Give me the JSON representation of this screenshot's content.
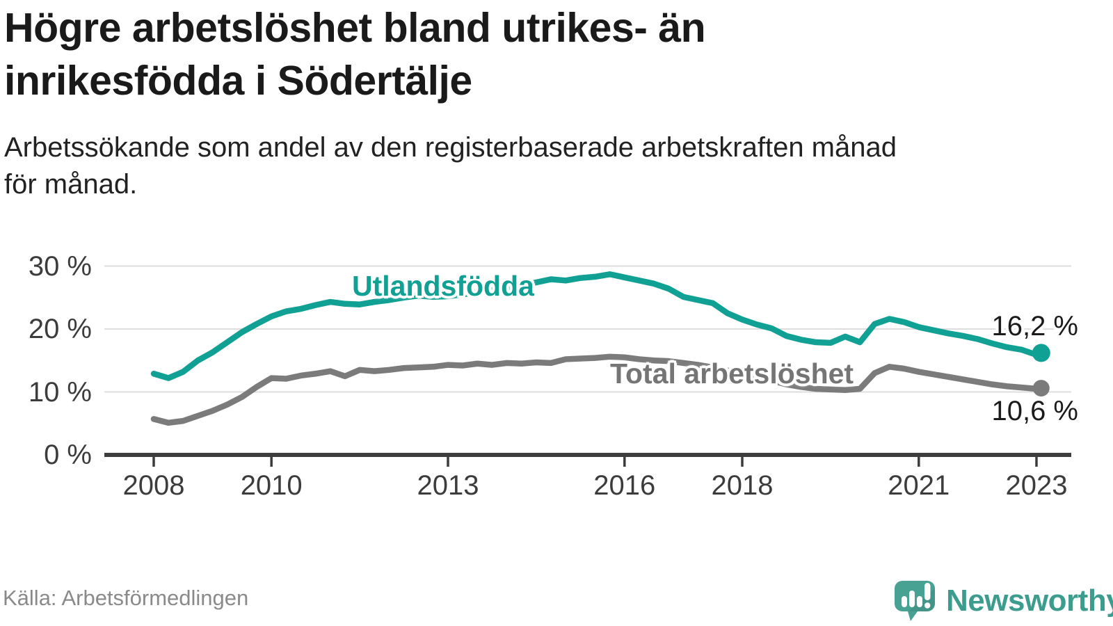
{
  "title_lines": [
    "Högre arbetslöshet bland utrikes- än",
    "inrikesfödda i Södertälje"
  ],
  "subtitle_lines": [
    "Arbetssökande som andel av den registerbaserade arbetskraften månad",
    "för månad."
  ],
  "source": "Källa: Arbetsförmedlingen",
  "branding": {
    "name": "Newsworthy"
  },
  "colors": {
    "background": "#FFFFFF",
    "title": "#1A1A1A",
    "subtitle": "#222222",
    "axis": "#3D3D3D",
    "axis_labels": "#3C3C3C",
    "grid": "#DEDEDE",
    "value_labels": "#1B1B1B",
    "source_text": "#8A8A8A",
    "brand_teal": "#3C9D8E",
    "series_foreign_born": "#10A094",
    "series_total": "#7B7B7B"
  },
  "chart_data": {
    "type": "line",
    "x_unit": "year (monthly register data, share of registered labour force in %)",
    "grid": "horizontal-only",
    "legend": "inline-labels",
    "xlim": [
      2007.2,
      2023.6
    ],
    "ylim": [
      0,
      31
    ],
    "x_ticks": [
      {
        "value": 2008,
        "label": "2008"
      },
      {
        "value": 2010,
        "label": "2010"
      },
      {
        "value": 2013,
        "label": "2013"
      },
      {
        "value": 2016,
        "label": "2016"
      },
      {
        "value": 2018,
        "label": "2018"
      },
      {
        "value": 2021,
        "label": "2021"
      },
      {
        "value": 2023,
        "label": "2023"
      }
    ],
    "y_ticks": [
      {
        "value": 0,
        "label": "0 %"
      },
      {
        "value": 10,
        "label": "10 %"
      },
      {
        "value": 20,
        "label": "20 %"
      },
      {
        "value": 30,
        "label": "30 %"
      }
    ],
    "x": [
      2008,
      2008.25,
      2008.5,
      2008.75,
      2009,
      2009.25,
      2009.5,
      2009.75,
      2010,
      2010.25,
      2010.5,
      2010.75,
      2011,
      2011.25,
      2011.5,
      2011.75,
      2012,
      2012.25,
      2012.5,
      2012.75,
      2013,
      2013.25,
      2013.5,
      2013.75,
      2014,
      2014.25,
      2014.5,
      2014.75,
      2015,
      2015.25,
      2015.5,
      2015.75,
      2016,
      2016.25,
      2016.5,
      2016.75,
      2017,
      2017.25,
      2017.5,
      2017.75,
      2018,
      2018.25,
      2018.5,
      2018.75,
      2019,
      2019.25,
      2019.5,
      2019.75,
      2020,
      2020.25,
      2020.5,
      2020.75,
      2021,
      2021.25,
      2021.5,
      2021.75,
      2022,
      2022.25,
      2022.5,
      2022.75,
      2023,
      2023.08
    ],
    "series": [
      {
        "name": "Utlandsfödda",
        "color": "#10A094",
        "end_label": "16,2 %",
        "end_value": 16.2,
        "end_dot_radius": 13,
        "values": [
          12.9,
          12.2,
          13.2,
          15.0,
          16.3,
          17.9,
          19.5,
          20.8,
          22.0,
          22.8,
          23.2,
          23.8,
          24.3,
          24.0,
          23.9,
          24.3,
          24.6,
          25.0,
          25.3,
          25.1,
          25.2,
          25.5,
          25.8,
          26.2,
          26.6,
          27.0,
          27.4,
          27.9,
          27.7,
          28.1,
          28.3,
          28.7,
          28.2,
          27.7,
          27.2,
          26.4,
          25.1,
          24.6,
          24.1,
          22.5,
          21.5,
          20.7,
          20.1,
          18.9,
          18.3,
          17.9,
          17.8,
          18.8,
          17.9,
          20.8,
          21.6,
          21.1,
          20.3,
          19.8,
          19.3,
          18.9,
          18.4,
          17.7,
          17.1,
          16.7,
          15.9,
          16.2
        ]
      },
      {
        "name": "Total arbetslöshet",
        "color": "#7B7B7B",
        "end_label": "10,6 %",
        "end_value": 10.6,
        "end_dot_radius": 12,
        "values": [
          5.7,
          5.1,
          5.4,
          6.2,
          7.0,
          8.0,
          9.2,
          10.8,
          12.2,
          12.1,
          12.6,
          12.9,
          13.3,
          12.5,
          13.5,
          13.3,
          13.5,
          13.8,
          13.9,
          14.0,
          14.3,
          14.2,
          14.5,
          14.3,
          14.6,
          14.5,
          14.7,
          14.6,
          15.2,
          15.3,
          15.4,
          15.6,
          15.5,
          15.2,
          15.0,
          14.9,
          14.6,
          14.3,
          13.9,
          13.4,
          13.0,
          12.4,
          11.8,
          11.2,
          10.8,
          10.5,
          10.4,
          10.3,
          10.5,
          13.0,
          14.0,
          13.7,
          13.2,
          12.8,
          12.4,
          12.0,
          11.6,
          11.2,
          10.9,
          10.7,
          10.5,
          10.6
        ]
      }
    ]
  }
}
